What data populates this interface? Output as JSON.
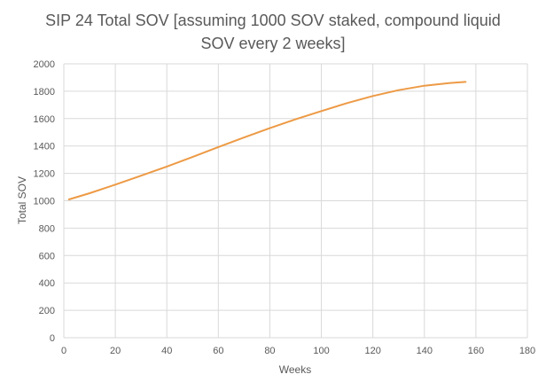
{
  "chart_data": {
    "type": "line",
    "title_lines": [
      "SIP 24 Total SOV [assuming 1000 SOV staked, compound liquid",
      "SOV every 2 weeks]"
    ],
    "xlabel": "Weeks",
    "ylabel": "Total SOV",
    "xlim": [
      0,
      180
    ],
    "ylim": [
      0,
      2000
    ],
    "x_ticks": [
      0,
      20,
      40,
      60,
      80,
      100,
      120,
      140,
      160,
      180
    ],
    "y_ticks": [
      0,
      200,
      400,
      600,
      800,
      1000,
      1200,
      1400,
      1600,
      1800,
      2000
    ],
    "grid": true,
    "legend": "none",
    "series": [
      {
        "color": "#ED9A45",
        "x": [
          2,
          10,
          20,
          30,
          40,
          50,
          60,
          70,
          80,
          90,
          100,
          110,
          120,
          130,
          140,
          150,
          156
        ],
        "y": [
          1010,
          1055,
          1118,
          1183,
          1250,
          1320,
          1392,
          1462,
          1530,
          1595,
          1655,
          1713,
          1765,
          1808,
          1840,
          1860,
          1868
        ]
      }
    ]
  }
}
